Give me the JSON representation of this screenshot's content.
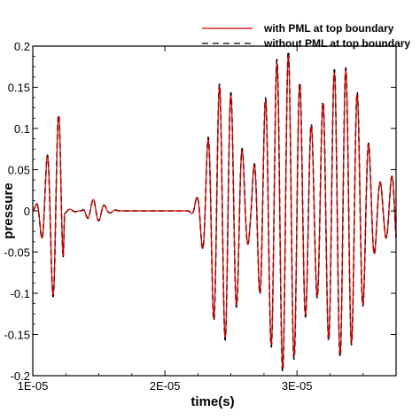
{
  "chart_data": {
    "type": "line",
    "title": "",
    "xlabel": "time(s)",
    "ylabel": "pressure",
    "xlim": [
      1e-05,
      3.75e-05
    ],
    "ylim": [
      -0.2,
      0.2
    ],
    "x_ticks": [
      {
        "value": 1e-05,
        "label": "1E-05"
      },
      {
        "value": 2e-05,
        "label": "2E-05"
      },
      {
        "value": 3e-05,
        "label": "3E-05"
      }
    ],
    "y_ticks": [
      {
        "value": 0.2,
        "label": "0.2"
      },
      {
        "value": 0.15,
        "label": "0.15"
      },
      {
        "value": 0.1,
        "label": "0.1"
      },
      {
        "value": 0.05,
        "label": "0.05"
      },
      {
        "value": 0,
        "label": "0"
      },
      {
        "value": -0.05,
        "label": "-0.05"
      },
      {
        "value": -0.1,
        "label": "-0.1"
      },
      {
        "value": -0.15,
        "label": "-0.15"
      },
      {
        "value": -0.2,
        "label": "-0.2"
      }
    ],
    "legend_position": "top-right",
    "grid": false,
    "carrier_frequency_hz": 1150000,
    "series": [
      {
        "name": "with PML at top boundary",
        "color": "#cc0000",
        "line_style": "solid",
        "envelope_x": [
          1e-05,
          1.02e-05,
          1.05e-05,
          1.09e-05,
          1.13e-05,
          1.17e-05,
          1.21e-05,
          1.23e-05,
          1.24e-05,
          1.37e-05,
          1.42e-05,
          1.47e-05,
          1.52e-05,
          1.57e-05,
          1.66e-05,
          1.77e-05,
          1.88e-05,
          1.99e-05,
          2.1e-05,
          2.18e-05,
          2.21e-05,
          2.25e-05,
          2.29e-05,
          2.33e-05,
          2.37e-05,
          2.41e-05,
          2.45e-05,
          2.49e-05,
          2.53e-05,
          2.57e-05,
          2.61e-05,
          2.65e-05,
          2.69e-05,
          2.73e-05,
          2.77e-05,
          2.81e-05,
          2.85e-05,
          2.89e-05,
          2.93e-05,
          2.97e-05,
          3.01e-05,
          3.05e-05,
          3.09e-05,
          3.13e-05,
          3.17e-05,
          3.21e-05,
          3.25e-05,
          3.29e-05,
          3.33e-05,
          3.37e-05,
          3.41e-05,
          3.45e-05,
          3.49e-05,
          3.53e-05,
          3.57e-05,
          3.61e-05,
          3.65e-05,
          3.69e-05,
          3.73e-05,
          3.75e-05
        ],
        "envelope_amp": [
          0.0,
          0.006,
          0.02,
          0.05,
          0.083,
          0.115,
          0.113,
          0.07,
          0.003,
          0.0,
          0.01,
          0.015,
          0.01,
          0.003,
          0.0,
          0.0,
          0.0,
          0.0,
          0.0,
          0.0,
          0.005,
          0.02,
          0.05,
          0.09,
          0.13,
          0.15,
          0.155,
          0.145,
          0.125,
          0.09,
          0.05,
          0.03,
          0.07,
          0.11,
          0.14,
          0.165,
          0.18,
          0.19,
          0.19,
          0.18,
          0.16,
          0.135,
          0.11,
          0.095,
          0.11,
          0.14,
          0.16,
          0.17,
          0.175,
          0.17,
          0.16,
          0.145,
          0.12,
          0.09,
          0.06,
          0.04,
          0.03,
          0.035,
          0.045,
          0.045
        ]
      },
      {
        "name": "without PML at top boundary",
        "color": "#000000",
        "line_style": "dashed",
        "envelope_x": [
          1e-05,
          1.02e-05,
          1.05e-05,
          1.09e-05,
          1.13e-05,
          1.17e-05,
          1.21e-05,
          1.23e-05,
          1.24e-05,
          1.37e-05,
          1.42e-05,
          1.47e-05,
          1.52e-05,
          1.57e-05,
          1.66e-05,
          1.77e-05,
          1.88e-05,
          1.99e-05,
          2.1e-05,
          2.18e-05,
          2.21e-05,
          2.25e-05,
          2.29e-05,
          2.33e-05,
          2.37e-05,
          2.41e-05,
          2.45e-05,
          2.49e-05,
          2.53e-05,
          2.57e-05,
          2.61e-05,
          2.65e-05,
          2.69e-05,
          2.73e-05,
          2.77e-05,
          2.81e-05,
          2.85e-05,
          2.89e-05,
          2.93e-05,
          2.97e-05,
          3.01e-05,
          3.05e-05,
          3.09e-05,
          3.13e-05,
          3.17e-05,
          3.21e-05,
          3.25e-05,
          3.29e-05,
          3.33e-05,
          3.37e-05,
          3.41e-05,
          3.45e-05,
          3.49e-05,
          3.53e-05,
          3.57e-05,
          3.61e-05,
          3.65e-05,
          3.69e-05,
          3.73e-05,
          3.75e-05
        ],
        "envelope_amp": [
          0.0,
          0.006,
          0.02,
          0.05,
          0.085,
          0.118,
          0.116,
          0.072,
          0.003,
          0.0,
          0.01,
          0.015,
          0.01,
          0.003,
          0.0,
          0.0,
          0.0,
          0.0,
          0.0,
          0.0,
          0.005,
          0.02,
          0.05,
          0.092,
          0.133,
          0.153,
          0.158,
          0.148,
          0.128,
          0.092,
          0.05,
          0.03,
          0.072,
          0.113,
          0.143,
          0.168,
          0.184,
          0.195,
          0.195,
          0.184,
          0.163,
          0.138,
          0.112,
          0.097,
          0.112,
          0.143,
          0.163,
          0.173,
          0.178,
          0.173,
          0.163,
          0.148,
          0.122,
          0.092,
          0.06,
          0.04,
          0.03,
          0.035,
          0.045,
          0.045
        ]
      }
    ]
  }
}
